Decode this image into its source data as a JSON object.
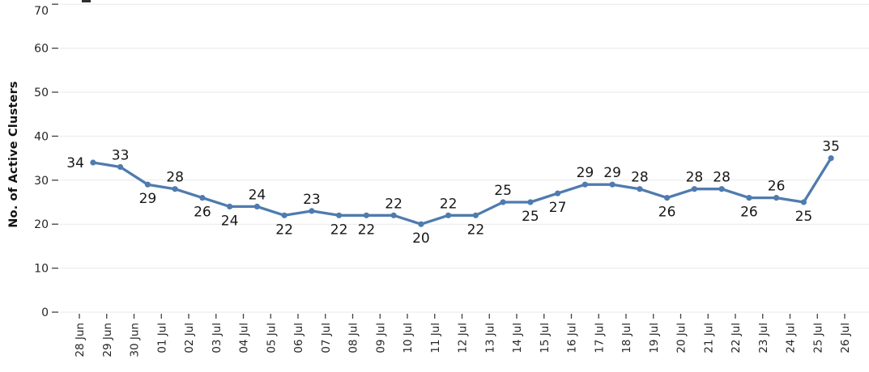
{
  "chart_data": {
    "type": "line",
    "title": "",
    "xlabel": "",
    "ylabel": "No. of Active Clusters",
    "ylim": [
      0,
      70
    ],
    "yticks": [
      0,
      10,
      20,
      30,
      40,
      50,
      60,
      70
    ],
    "grid": true,
    "legend_position": "none",
    "x_tick_labels": [
      "28 Jun",
      "29 Jun",
      "30 Jun",
      "01 Jul",
      "02 Jul",
      "03 Jul",
      "04 Jul",
      "05 Jul",
      "06 Jul",
      "07 Jul",
      "08 Jul",
      "09 Jul",
      "10 Jul",
      "11 Jul",
      "12 Jul",
      "13 Jul",
      "14 Jul",
      "15 Jul",
      "16 Jul",
      "17 Jul",
      "18 Jul",
      "19 Jul",
      "20 Jul",
      "21 Jul",
      "22 Jul",
      "23 Jul",
      "24 Jul",
      "25 Jul",
      "26 Jul"
    ],
    "points_between_ticks": true,
    "series": [
      {
        "name": "No. of Active Clusters",
        "values": [
          34,
          33,
          29,
          28,
          26,
          24,
          24,
          22,
          23,
          22,
          22,
          22,
          20,
          22,
          22,
          25,
          25,
          27,
          29,
          29,
          28,
          26,
          28,
          28,
          26,
          26,
          25,
          35
        ],
        "value_label_positions": [
          "left",
          "above",
          "below",
          "above",
          "below",
          "below",
          "above",
          "below",
          "above",
          "below",
          "below",
          "above",
          "below",
          "above",
          "below",
          "above",
          "below",
          "below",
          "above",
          "above",
          "above",
          "below",
          "above",
          "above",
          "below",
          "above",
          "below",
          "above"
        ]
      }
    ],
    "colors": {
      "line": "#4f7bae",
      "marker": "#4f7bae",
      "gridline": "#e9e9e9",
      "tick_mark": "#404040",
      "axis_label": "#262626",
      "value_label": "#161616",
      "background": "#ffffff"
    }
  }
}
